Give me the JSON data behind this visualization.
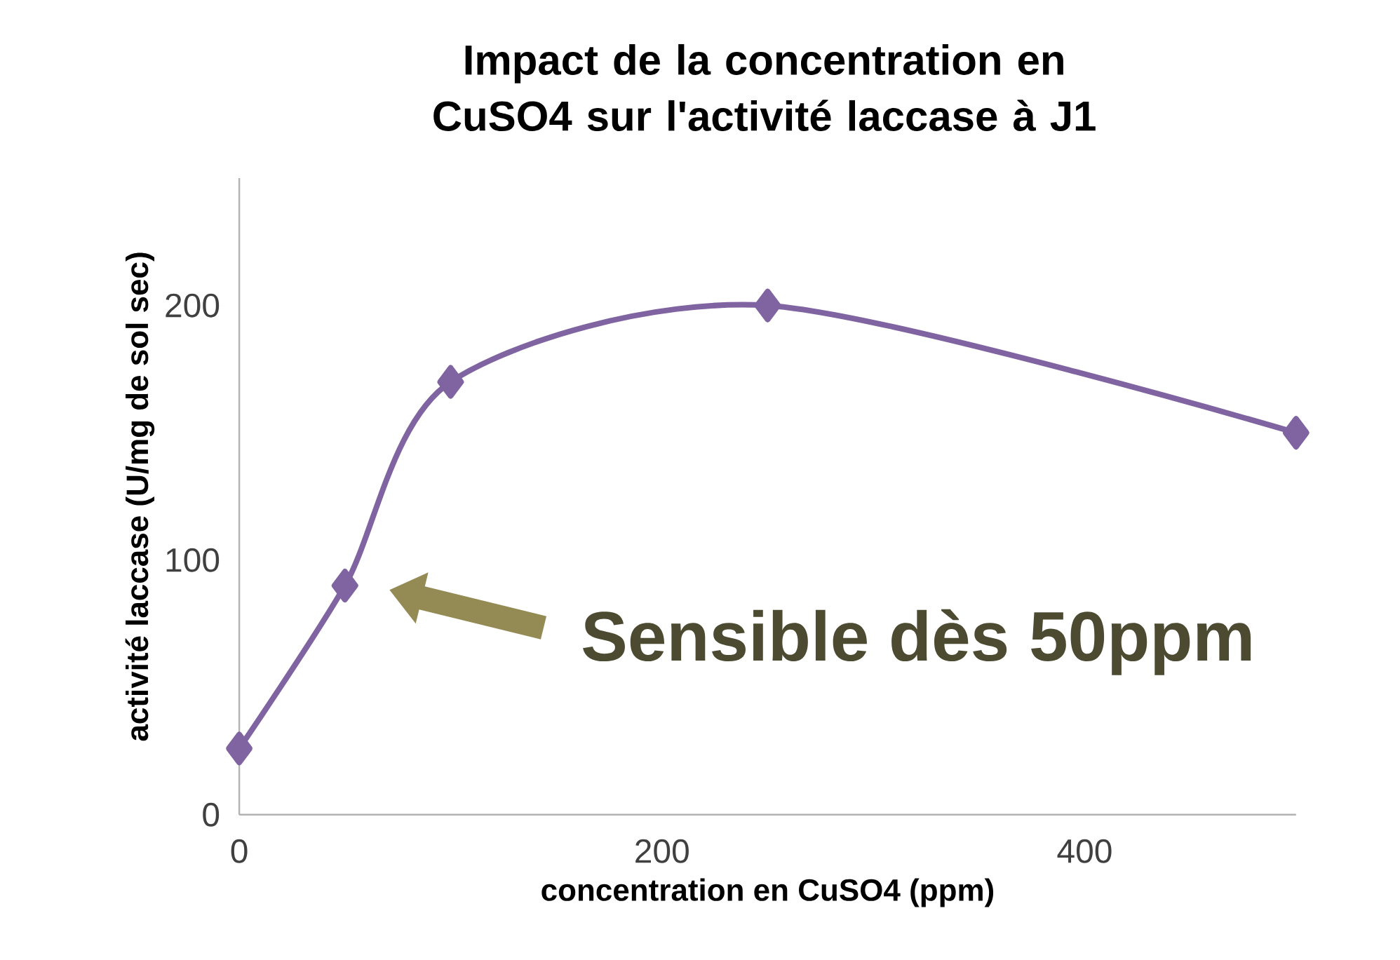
{
  "chart_data": {
    "type": "line",
    "title": "Impact de la concentration en CuSO4 sur l'activité laccase à J1",
    "xlabel": "concentration en CuSO4 (ppm)",
    "ylabel": "activité laccase (U/mg de sol sec)",
    "x": [
      0,
      50,
      100,
      250,
      500
    ],
    "series": [
      {
        "color": "#8064a2",
        "values": [
          26,
          90,
          170,
          200,
          150
        ]
      }
    ],
    "xlim": [
      0,
      500
    ],
    "ylim": [
      0,
      250
    ],
    "xticks": [
      0,
      200,
      400
    ],
    "yticks": [
      0,
      100,
      200
    ],
    "marker": "diamond",
    "line_style": "solid",
    "annotations": [
      "Sensible dès 50ppm"
    ]
  }
}
